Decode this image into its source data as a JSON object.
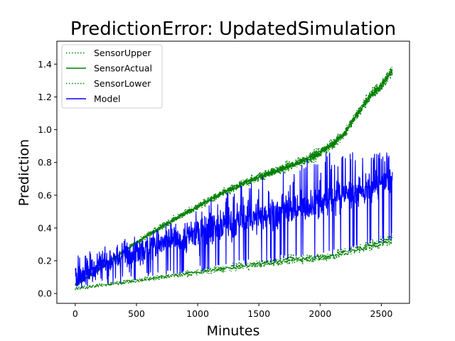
{
  "chart_data": {
    "type": "line",
    "title": "PredictionError: UpdatedSimulation",
    "xlabel": "Minutes",
    "ylabel": "Prediction",
    "xlim": [
      -150,
      2730
    ],
    "ylim": [
      -0.06,
      1.54
    ],
    "xticks": [
      0,
      500,
      1000,
      1500,
      2000,
      2500
    ],
    "yticks": [
      0.0,
      0.2,
      0.4,
      0.6,
      0.8,
      1.0,
      1.2,
      1.4
    ],
    "xtick_labels": [
      "0",
      "500",
      "1000",
      "1500",
      "2000",
      "2500"
    ],
    "ytick_labels": [
      "0.0",
      "0.2",
      "0.4",
      "0.6",
      "0.8",
      "1.0",
      "1.2",
      "1.4"
    ],
    "grid": false,
    "legend_position": "top-left",
    "x_range": [
      0,
      2590
    ],
    "series": [
      {
        "name": "SensorUpper",
        "color": "#008000",
        "style": "dotted",
        "trend_x": [
          0,
          200,
          400,
          600,
          800,
          1000,
          1200,
          1400,
          1600,
          1800,
          2000,
          2100,
          2200,
          2300,
          2400,
          2500,
          2590
        ],
        "trend_y": [
          0.05,
          0.15,
          0.26,
          0.36,
          0.45,
          0.53,
          0.61,
          0.68,
          0.74,
          0.79,
          0.86,
          0.91,
          0.98,
          1.09,
          1.2,
          1.27,
          1.36
        ]
      },
      {
        "name": "SensorActual",
        "color": "#008000",
        "style": "solid",
        "trend_x": [
          0,
          200,
          400,
          600,
          800,
          1000,
          1200,
          1400,
          1600,
          1800,
          2000,
          2100,
          2200,
          2300,
          2400,
          2500,
          2590
        ],
        "trend_y": [
          0.05,
          0.15,
          0.26,
          0.36,
          0.45,
          0.53,
          0.61,
          0.68,
          0.74,
          0.79,
          0.86,
          0.91,
          0.98,
          1.09,
          1.2,
          1.27,
          1.36
        ]
      },
      {
        "name": "SensorLower",
        "color": "#008000",
        "style": "dotted",
        "trend_x": [
          0,
          200,
          400,
          600,
          800,
          1000,
          1200,
          1400,
          1600,
          1800,
          2000,
          2100,
          2200,
          2300,
          2400,
          2500,
          2590
        ],
        "trend_y": [
          0.03,
          0.05,
          0.07,
          0.09,
          0.11,
          0.13,
          0.15,
          0.17,
          0.19,
          0.21,
          0.22,
          0.23,
          0.25,
          0.27,
          0.29,
          0.31,
          0.33
        ]
      },
      {
        "name": "Model",
        "color": "#0000ff",
        "style": "solid",
        "trend_x": [
          0,
          200,
          400,
          600,
          800,
          1000,
          1200,
          1400,
          1600,
          1800,
          2000,
          2200,
          2400,
          2590
        ],
        "trend_y": [
          0.12,
          0.19,
          0.23,
          0.28,
          0.32,
          0.37,
          0.42,
          0.45,
          0.48,
          0.52,
          0.55,
          0.6,
          0.65,
          0.7
        ]
      }
    ]
  }
}
